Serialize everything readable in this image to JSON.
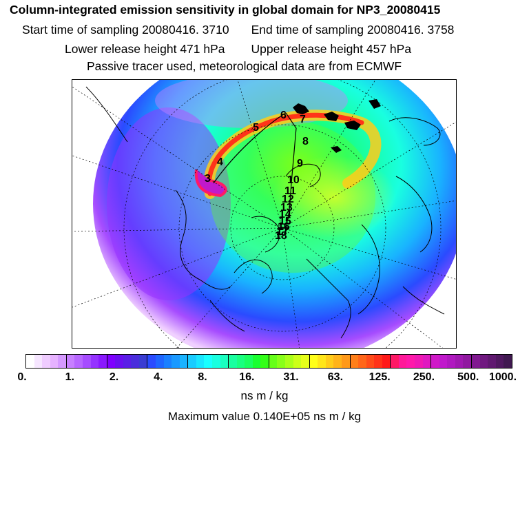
{
  "header": {
    "title": "Column-integrated emission sensitivity in global domain for NP3_20080415",
    "start_label": "Start time of sampling 20080416.  3710",
    "end_label": "End time of sampling 20080416.  3758",
    "lower_label": "Lower release height  471 hPa",
    "upper_label": "Upper release height  457 hPa",
    "note": "Passive tracer used, meteorological data are from ECMWF"
  },
  "map": {
    "projection": "north-polar-stereographic",
    "track_labels": [
      "3",
      "4",
      "5",
      "6",
      "7",
      "8",
      "9",
      "10",
      "11",
      "12",
      "13",
      "14",
      "15",
      "16",
      "17",
      "18"
    ],
    "colors": {
      "land_outline": "#000000",
      "grid": "#000000",
      "track": "#000000"
    }
  },
  "colorbar": {
    "tick_labels": [
      "0.",
      "1.",
      "2.",
      "4.",
      "8.",
      "16.",
      "31.",
      "63.",
      "125.",
      "250.",
      "500.",
      "1000."
    ],
    "colors": [
      "#ffffff",
      "#f6e6ff",
      "#efccff",
      "#e6b2ff",
      "#d599ff",
      "#c77fff",
      "#b766ff",
      "#a64cff",
      "#9533ff",
      "#8a19ff",
      "#7f00ff",
      "#6a0ff0",
      "#5a1ee6",
      "#4a2ddc",
      "#3a3cd2",
      "#2a4bff",
      "#1f66ff",
      "#1a80ff",
      "#1a99ff",
      "#19b3ff",
      "#19ccff",
      "#19e6ff",
      "#19ffff",
      "#19ffe0",
      "#19ffc0",
      "#19ffa0",
      "#19ff80",
      "#19ff60",
      "#19ff30",
      "#33ff19",
      "#66ff19",
      "#88ff19",
      "#aaff19",
      "#ccff19",
      "#e6ff19",
      "#ffff19",
      "#ffe619",
      "#ffcc19",
      "#ffb319",
      "#ff9919",
      "#ff7f19",
      "#ff6619",
      "#ff4c19",
      "#ff3319",
      "#ff1919",
      "#ff1966",
      "#ff1999",
      "#ff19aa",
      "#f019b3",
      "#e019c0",
      "#d019c8",
      "#c019cc",
      "#b019c0",
      "#a019b0",
      "#9019a0",
      "#801990",
      "#701980",
      "#601970",
      "#501960",
      "#401950"
    ],
    "units": "ns m / kg",
    "max_label": "Maximum value  0.140E+05 ns m / kg"
  }
}
